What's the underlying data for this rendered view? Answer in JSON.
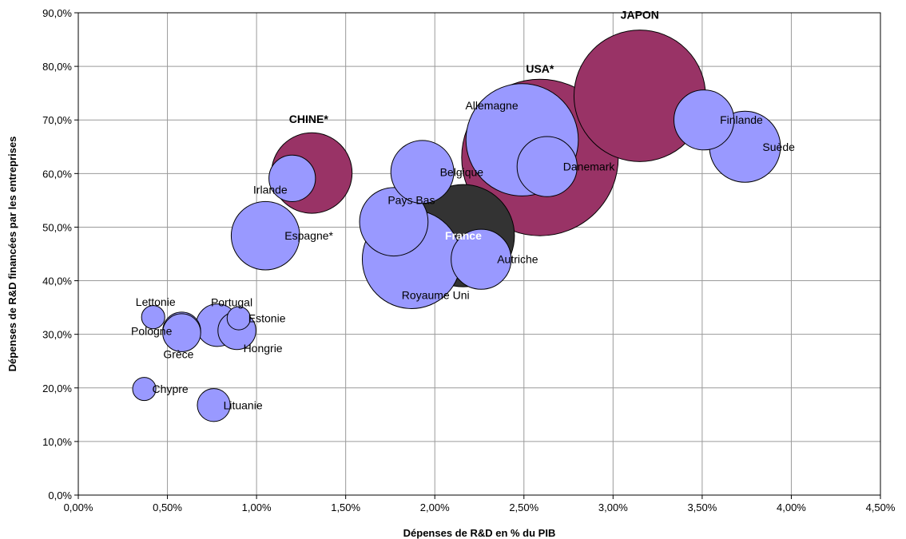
{
  "chart_data": {
    "type": "bubble",
    "title": "",
    "xlabel": "Dépenses de R&D en % du PIB",
    "ylabel": "Dépenses de R&D financées par les entreprises",
    "xlim": [
      0,
      4.5
    ],
    "ylim": [
      0,
      90
    ],
    "x_ticks": [
      "0,00%",
      "0,50%",
      "1,00%",
      "1,50%",
      "2,00%",
      "2,50%",
      "3,00%",
      "3,50%",
      "4,00%",
      "4,50%"
    ],
    "y_ticks": [
      "0,0%",
      "10,0%",
      "20,0%",
      "30,0%",
      "40,0%",
      "50,0%",
      "60,0%",
      "70,0%",
      "80,0%",
      "90,0%"
    ],
    "grid": true,
    "colors": {
      "eu": "#9999ff",
      "non_eu": "#993366",
      "france": "#333333",
      "outline": "#000000"
    },
    "points": [
      {
        "label": "USA*",
        "x": 2.59,
        "y": 63.0,
        "size": 68,
        "group": "non_eu",
        "bold": true
      },
      {
        "label": "JAPON",
        "x": 3.15,
        "y": 74.5,
        "size": 48,
        "group": "non_eu",
        "bold": true
      },
      {
        "label": "CHINE*",
        "x": 1.31,
        "y": 60.1,
        "size": 18,
        "group": "non_eu",
        "bold": true
      },
      {
        "label": "Allemagne",
        "x": 2.49,
        "y": 66.3,
        "size": 35,
        "group": "eu"
      },
      {
        "label": "France",
        "x": 2.16,
        "y": 48.4,
        "size": 29,
        "group": "france",
        "bold": true
      },
      {
        "label": "Royaume Uni",
        "x": 1.87,
        "y": 44.0,
        "size": 27,
        "group": "eu"
      },
      {
        "label": "Finlande",
        "x": 3.51,
        "y": 70.0,
        "size": 10,
        "group": "eu"
      },
      {
        "label": "Suède",
        "x": 3.74,
        "y": 65.0,
        "size": 14,
        "group": "eu"
      },
      {
        "label": "Danemark",
        "x": 2.63,
        "y": 61.3,
        "size": 10,
        "group": "eu"
      },
      {
        "label": "Belgique",
        "x": 1.93,
        "y": 60.3,
        "size": 11,
        "group": "eu"
      },
      {
        "label": "Pays Bas",
        "x": 1.77,
        "y": 51.0,
        "size": 13,
        "group": "eu"
      },
      {
        "label": "Autriche",
        "x": 2.26,
        "y": 44.0,
        "size": 10,
        "group": "eu"
      },
      {
        "label": "Espagne*",
        "x": 1.05,
        "y": 48.4,
        "size": 13,
        "group": "eu"
      },
      {
        "label": "Irlande",
        "x": 1.2,
        "y": 59.1,
        "size": 6,
        "group": "eu"
      },
      {
        "label": "Portugal",
        "x": 0.78,
        "y": 31.7,
        "size": 5,
        "group": "eu"
      },
      {
        "label": "Estonie",
        "x": 0.9,
        "y": 33.0,
        "size": 1.5,
        "group": "eu"
      },
      {
        "label": "Hongrie",
        "x": 0.89,
        "y": 30.7,
        "size": 4,
        "group": "eu"
      },
      {
        "label": "Pologne",
        "x": 0.58,
        "y": 30.6,
        "size": 4,
        "group": "eu"
      },
      {
        "label": "Grèce",
        "x": 0.58,
        "y": 30.3,
        "size": 4,
        "group": "eu"
      },
      {
        "label": "Lettonie",
        "x": 0.42,
        "y": 33.2,
        "size": 1.5,
        "group": "eu"
      },
      {
        "label": "Chypre",
        "x": 0.37,
        "y": 19.8,
        "size": 1.5,
        "group": "eu"
      },
      {
        "label": "Lituanie",
        "x": 0.76,
        "y": 16.8,
        "size": 3,
        "group": "eu"
      }
    ]
  }
}
